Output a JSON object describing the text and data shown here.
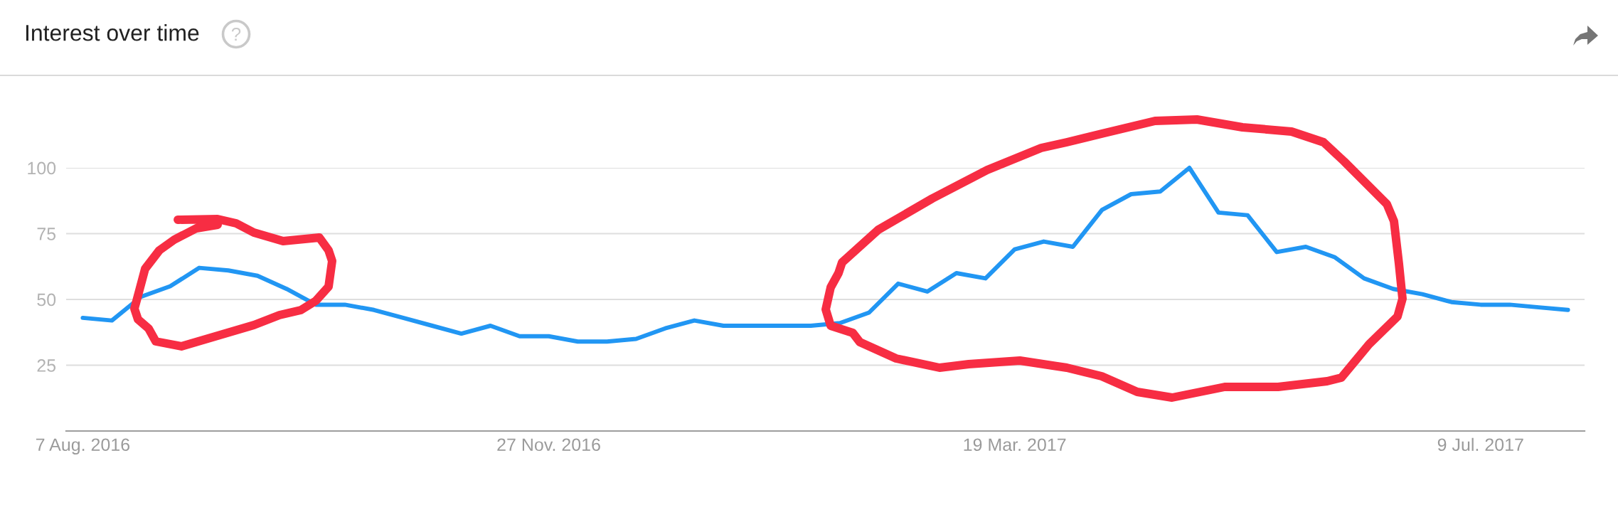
{
  "chart_data": {
    "type": "line",
    "title": "Interest over time",
    "x": [
      "2016-08-07",
      "2016-08-14",
      "2016-08-21",
      "2016-08-28",
      "2016-09-04",
      "2016-09-11",
      "2016-09-18",
      "2016-09-25",
      "2016-10-02",
      "2016-10-09",
      "2016-10-16",
      "2016-10-23",
      "2016-10-30",
      "2016-11-06",
      "2016-11-13",
      "2016-11-20",
      "2016-11-27",
      "2016-12-04",
      "2016-12-11",
      "2016-12-18",
      "2016-12-25",
      "2017-01-01",
      "2017-01-08",
      "2017-01-15",
      "2017-01-22",
      "2017-01-29",
      "2017-02-05",
      "2017-02-12",
      "2017-02-19",
      "2017-02-26",
      "2017-03-05",
      "2017-03-12",
      "2017-03-19",
      "2017-03-26",
      "2017-04-02",
      "2017-04-09",
      "2017-04-16",
      "2017-04-23",
      "2017-04-30",
      "2017-05-07",
      "2017-05-14",
      "2017-05-21",
      "2017-05-28",
      "2017-06-04",
      "2017-06-11",
      "2017-06-18",
      "2017-06-25",
      "2017-07-02",
      "2017-07-09",
      "2017-07-16",
      "2017-07-23",
      "2017-07-30"
    ],
    "series": [
      {
        "color": "#2196f3",
        "values": [
          43,
          42,
          51,
          55,
          62,
          61,
          59,
          54,
          48,
          48,
          46,
          43,
          40,
          37,
          40,
          36,
          36,
          34,
          34,
          35,
          39,
          42,
          40,
          40,
          40,
          40,
          41,
          45,
          56,
          53,
          60,
          58,
          69,
          72,
          70,
          84,
          90,
          91,
          100,
          83,
          82,
          68,
          70,
          66,
          58,
          54,
          52,
          49,
          48,
          48,
          47,
          46
        ]
      }
    ],
    "xlim": [
      "2016-08-03",
      "2017-08-03"
    ],
    "xticks": [
      {
        "value": "2016-08-07",
        "label": "7 Aug. 2016"
      },
      {
        "value": "2016-11-27",
        "label": "27 Nov. 2016"
      },
      {
        "value": "2017-03-19",
        "label": "19 Mar. 2017"
      },
      {
        "value": "2017-07-09",
        "label": "9 Jul. 2017"
      }
    ],
    "ylim": [
      0,
      100
    ],
    "yticks": [
      25,
      50,
      75,
      100
    ],
    "grid": "y"
  }
}
